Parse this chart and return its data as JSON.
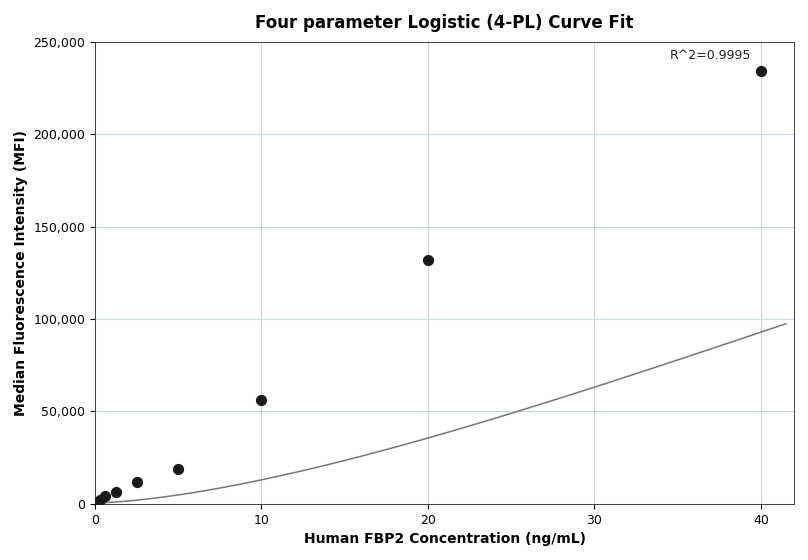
{
  "title": "Four parameter Logistic (4-PL) Curve Fit",
  "xlabel": "Human FBP2 Concentration (ng/mL)",
  "ylabel": "Median Fluorescence Intensity (MFI)",
  "scatter_x": [
    0.156,
    0.313,
    0.625,
    1.25,
    2.5,
    5.0,
    10.0,
    20.0,
    40.0
  ],
  "scatter_y": [
    1200,
    2000,
    4500,
    6500,
    12000,
    19000,
    56000,
    132000,
    234000
  ],
  "xlim": [
    0,
    42
  ],
  "ylim": [
    0,
    250000
  ],
  "yticks": [
    0,
    50000,
    100000,
    150000,
    200000,
    250000
  ],
  "xticks": [
    0,
    10,
    20,
    30,
    40
  ],
  "r2_text": "R^2=0.9995",
  "r2_x": 34.5,
  "r2_y": 246000,
  "scatter_color": "#1a1a1a",
  "line_color": "#777777",
  "grid_color": "#c8d8e8",
  "bg_color": "#ffffff",
  "title_fontsize": 12,
  "label_fontsize": 10,
  "tick_fontsize": 9,
  "4pl_A": 500,
  "4pl_B": 1.55,
  "4pl_C": 120.0,
  "4pl_D": 600000
}
